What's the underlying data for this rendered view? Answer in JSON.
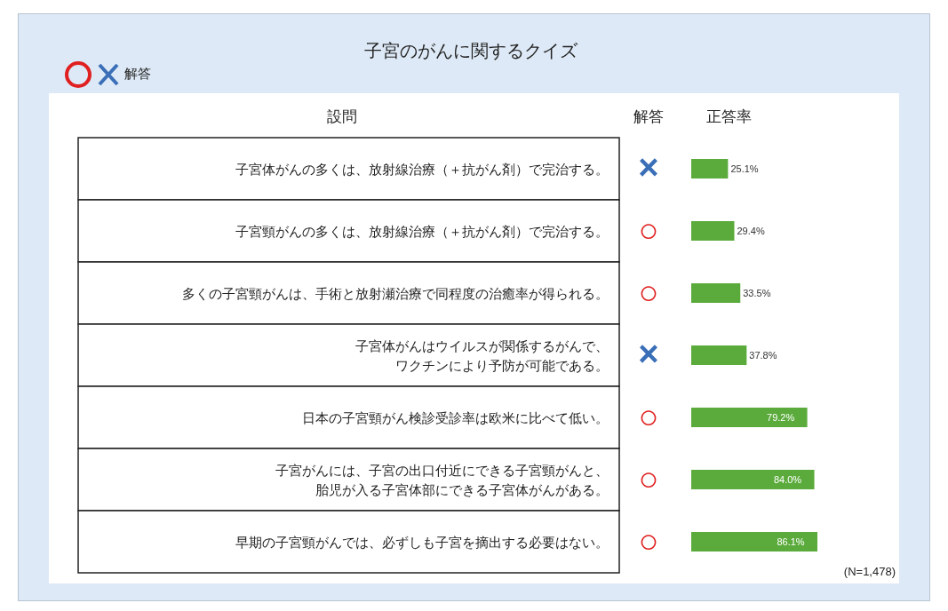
{
  "chart_data": {
    "type": "bar",
    "orientation": "horizontal",
    "title": "子宮のがんに関するクイズ",
    "legend_title": "解答",
    "ylabel": "設問",
    "xlabel": "正答率",
    "categories": [
      "子宮体がんの多くは、放射線治療（＋抗がん剤）で完治する。",
      "子宮頸がんの多くは、放射線治療（＋抗がん剤）で完治する。",
      "多くの子宮頸がんは、手術と放射瀬治療で同程度の治癒率が得られる。",
      "子宮体がんはウイルスが関係するがんで、ワクチンにより予防が可能である。",
      "日本の子宮頸がん検診受診率は欧米に比べて低い。",
      "子宮がんには、子宮の出口付近にできる子宮頸がんと、胎児が入る子宮体部にできる子宮体がんがある。",
      "早期の子宮頸がんでは、必ずしも子宮を摘出する必要はない。"
    ],
    "values": [
      25.1,
      29.4,
      33.5,
      37.8,
      79.2,
      84.0,
      86.1
    ],
    "value_labels": [
      "25.1%",
      "29.4%",
      "33.5%",
      "37.8%",
      "79.2%",
      "84.0%",
      "86.1%"
    ],
    "color": "#5bab3c",
    "annotations": [
      "解答",
      "(N=1,478)",
      "×",
      "○",
      "○",
      "×",
      "○",
      "○",
      "○"
    ]
  }
}
